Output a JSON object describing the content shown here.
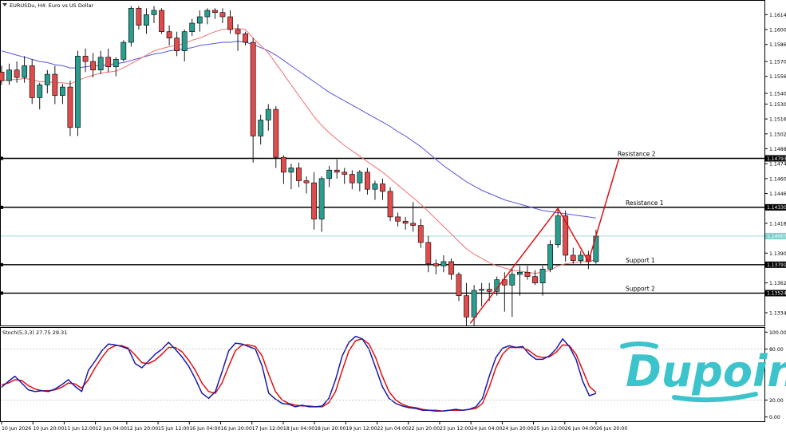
{
  "header": {
    "symbol_title": "EURUSDu, H4:  Euro vs US Dollar",
    "stoch_label": "Stoch(5,3,3) 27.75 29.31"
  },
  "brand": {
    "logo_text": "Dupoin",
    "color": "#3cc3cc"
  },
  "colors": {
    "bull": "#2a9d8f",
    "bear": "#e04b4b",
    "ma_fast": "#f07070",
    "ma_slow": "#5555dd",
    "stoch_main": "#1a1aa8",
    "stoch_signal": "#e01010",
    "current_price_line": "#7fcfcf",
    "level_line": "#000000",
    "projection": "#e01010"
  },
  "levels": [
    {
      "name": "Resistance 2",
      "price": 1.1479,
      "tag": "1.14793"
    },
    {
      "name": "Resistance 1",
      "price": 1.1433,
      "tag": "1.14330"
    },
    {
      "name": "Support 1",
      "price": 1.13791,
      "tag": "1.13791"
    },
    {
      "name": "Support 2",
      "price": 1.13524,
      "tag": "1.13524"
    }
  ],
  "current_price": {
    "price": 1.1406,
    "tag": "1.14067"
  },
  "chart_data": [
    {
      "type": "candlestick",
      "title": "EURUSDu, H4:  Euro vs US Dollar",
      "y_axis_ticks": [
        1.1614,
        1.16,
        1.1586,
        1.157,
        1.1556,
        1.154,
        1.153,
        1.1516,
        1.1502,
        1.1488,
        1.1474,
        1.146,
        1.1446,
        1.1418,
        1.139,
        1.1362,
        1.1334
      ],
      "y_axis_tick_labels": [
        "1.16140",
        "1.16000",
        "1.15860",
        "1.15700",
        "1.15560",
        "1.15400",
        "1.15300",
        "1.15160",
        "1.15020",
        "1.14880",
        "1.14740",
        "1.14600",
        "1.14460",
        "1.14180",
        "1.13900",
        "1.13620",
        "1.13340"
      ],
      "ylim": [
        1.1322,
        1.1627
      ],
      "x_tick_labels": [
        "10 Jun 2026",
        "10 Jun 20:00",
        "11 Jun 12:00",
        "12 Jun 04:00",
        "12 Jun 20:00",
        "15 Jun 12:00",
        "16 Jun 04:00",
        "16 Jun 20:00",
        "17 Jun 12:00",
        "18 Jun 04:00",
        "18 Jun 20:00",
        "19 Jun 12:00",
        "22 Jun 04:00",
        "22 Jun 20:00",
        "23 Jun 12:00",
        "24 Jun 04:00",
        "24 Jun 20:00",
        "25 Jun 12:00",
        "26 Jun 04:00",
        "26 Jun 20:00"
      ],
      "candles": [
        [
          1.156,
          1.1566,
          1.1548,
          1.1552
        ],
        [
          1.1552,
          1.1568,
          1.1548,
          1.1562
        ],
        [
          1.1562,
          1.157,
          1.155,
          1.1555
        ],
        [
          1.1555,
          1.1575,
          1.155,
          1.1566
        ],
        [
          1.1566,
          1.1572,
          1.153,
          1.1536
        ],
        [
          1.1536,
          1.155,
          1.1525,
          1.1548
        ],
        [
          1.1548,
          1.1562,
          1.154,
          1.1558
        ],
        [
          1.1558,
          1.1566,
          1.153,
          1.1538
        ],
        [
          1.1538,
          1.1549,
          1.153,
          1.1546
        ],
        [
          1.1546,
          1.1552,
          1.15,
          1.1508
        ],
        [
          1.1508,
          1.158,
          1.15,
          1.1575
        ],
        [
          1.1575,
          1.1582,
          1.156,
          1.157
        ],
        [
          1.157,
          1.1578,
          1.1555,
          1.1562
        ],
        [
          1.1562,
          1.158,
          1.1558,
          1.1574
        ],
        [
          1.1574,
          1.1582,
          1.156,
          1.1565
        ],
        [
          1.1565,
          1.1574,
          1.1556,
          1.1572
        ],
        [
          1.1572,
          1.159,
          1.157,
          1.1588
        ],
        [
          1.1588,
          1.1622,
          1.1584,
          1.162
        ],
        [
          1.162,
          1.1622,
          1.16,
          1.1604
        ],
        [
          1.1604,
          1.162,
          1.1596,
          1.1614
        ],
        [
          1.1614,
          1.1622,
          1.1606,
          1.1618
        ],
        [
          1.1618,
          1.162,
          1.1596,
          1.1598
        ],
        [
          1.1598,
          1.1604,
          1.1585,
          1.1592
        ],
        [
          1.1592,
          1.1598,
          1.1575,
          1.158
        ],
        [
          1.158,
          1.16,
          1.157,
          1.1598
        ],
        [
          1.1598,
          1.161,
          1.1594,
          1.1606
        ],
        [
          1.1606,
          1.1618,
          1.1598,
          1.1612
        ],
        [
          1.1612,
          1.162,
          1.1605,
          1.1618
        ],
        [
          1.1618,
          1.162,
          1.161,
          1.1616
        ],
        [
          1.1616,
          1.162,
          1.1606,
          1.1612
        ],
        [
          1.1612,
          1.1618,
          1.1596,
          1.16
        ],
        [
          1.16,
          1.1605,
          1.158,
          1.1596
        ],
        [
          1.1596,
          1.1598,
          1.1585,
          1.1588
        ],
        [
          1.1588,
          1.1592,
          1.1475,
          1.15
        ],
        [
          1.15,
          1.152,
          1.1492,
          1.1515
        ],
        [
          1.1515,
          1.153,
          1.1505,
          1.1525
        ],
        [
          1.1525,
          1.1528,
          1.147,
          1.148
        ],
        [
          1.148,
          1.1482,
          1.1455,
          1.1466
        ],
        [
          1.1466,
          1.1474,
          1.145,
          1.147
        ],
        [
          1.147,
          1.1475,
          1.1452,
          1.1458
        ],
        [
          1.1458,
          1.1462,
          1.1446,
          1.1456
        ],
        [
          1.1456,
          1.1466,
          1.1412,
          1.1422
        ],
        [
          1.1422,
          1.1462,
          1.141,
          1.146
        ],
        [
          1.146,
          1.1472,
          1.1452,
          1.1468
        ],
        [
          1.1468,
          1.1478,
          1.146,
          1.1466
        ],
        [
          1.1466,
          1.147,
          1.1455,
          1.1464
        ],
        [
          1.1464,
          1.1468,
          1.145,
          1.1456
        ],
        [
          1.1456,
          1.1468,
          1.1448,
          1.1466
        ],
        [
          1.1466,
          1.147,
          1.1445,
          1.145
        ],
        [
          1.145,
          1.1458,
          1.144,
          1.1455
        ],
        [
          1.1455,
          1.146,
          1.144,
          1.1448
        ],
        [
          1.1448,
          1.1452,
          1.142,
          1.1424
        ],
        [
          1.1424,
          1.1428,
          1.1415,
          1.142
        ],
        [
          1.142,
          1.1424,
          1.1412,
          1.1418
        ],
        [
          1.1418,
          1.1438,
          1.141,
          1.1416
        ],
        [
          1.1416,
          1.1422,
          1.1395,
          1.14
        ],
        [
          1.14,
          1.1406,
          1.1372,
          1.138
        ],
        [
          1.138,
          1.1384,
          1.137,
          1.1378
        ],
        [
          1.1378,
          1.1388,
          1.1372,
          1.1382
        ],
        [
          1.1382,
          1.1385,
          1.1365,
          1.137
        ],
        [
          1.137,
          1.1372,
          1.1345,
          1.135
        ],
        [
          1.135,
          1.1362,
          1.1322,
          1.133
        ],
        [
          1.133,
          1.136,
          1.1322,
          1.1355
        ],
        [
          1.1355,
          1.1362,
          1.134,
          1.1356
        ],
        [
          1.1356,
          1.1362,
          1.1345,
          1.1354
        ],
        [
          1.1354,
          1.1368,
          1.135,
          1.1365
        ],
        [
          1.1365,
          1.1372,
          1.1335,
          1.136
        ],
        [
          1.136,
          1.1375,
          1.133,
          1.137
        ],
        [
          1.137,
          1.1378,
          1.135,
          1.1372
        ],
        [
          1.1372,
          1.1378,
          1.1365,
          1.1368
        ],
        [
          1.1368,
          1.1374,
          1.136,
          1.1362
        ],
        [
          1.1362,
          1.1378,
          1.135,
          1.1375
        ],
        [
          1.1375,
          1.1402,
          1.1372,
          1.1398
        ],
        [
          1.1398,
          1.1432,
          1.1395,
          1.1425
        ],
        [
          1.1425,
          1.143,
          1.1382,
          1.1388
        ],
        [
          1.1388,
          1.1395,
          1.138,
          1.1383
        ],
        [
          1.1383,
          1.1392,
          1.138,
          1.1388
        ],
        [
          1.1388,
          1.1392,
          1.1375,
          1.1382
        ],
        [
          1.1382,
          1.1412,
          1.138,
          1.1406
        ]
      ],
      "ma_fast": [
        1.1552,
        1.1553,
        1.1553,
        1.1554,
        1.1553,
        1.1551,
        1.1551,
        1.155,
        1.155,
        1.1549,
        1.1552,
        1.1555,
        1.1557,
        1.1559,
        1.156,
        1.1561,
        1.1564,
        1.1568,
        1.1572,
        1.1576,
        1.158,
        1.1582,
        1.1584,
        1.1585,
        1.1587,
        1.159,
        1.1592,
        1.1595,
        1.1598,
        1.16,
        1.1601,
        1.1601,
        1.16,
        1.1592,
        1.1585,
        1.1578,
        1.1568,
        1.1558,
        1.1548,
        1.1538,
        1.1528,
        1.1518,
        1.151,
        1.1503,
        1.1497,
        1.1491,
        1.1486,
        1.1481,
        1.1476,
        1.1471,
        1.1466,
        1.146,
        1.1454,
        1.1448,
        1.1442,
        1.1436,
        1.1429,
        1.1422,
        1.1415,
        1.1408,
        1.1401,
        1.1394,
        1.1389,
        1.1385,
        1.1381,
        1.1378,
        1.1376,
        1.1374,
        1.1373,
        1.1372,
        1.1371,
        1.1372,
        1.1374,
        1.1378,
        1.138,
        1.1381,
        1.1382,
        1.1382,
        1.1384
      ],
      "ma_slow": [
        1.158,
        1.1578,
        1.1576,
        1.1574,
        1.1572,
        1.157,
        1.1569,
        1.1567,
        1.1566,
        1.1564,
        1.1564,
        1.1565,
        1.1566,
        1.1566,
        1.1567,
        1.1568,
        1.1569,
        1.1571,
        1.1573,
        1.1575,
        1.1577,
        1.1578,
        1.158,
        1.1581,
        1.1582,
        1.1583,
        1.1585,
        1.1586,
        1.1587,
        1.1588,
        1.1588,
        1.1589,
        1.1588,
        1.1586,
        1.1583,
        1.158,
        1.1576,
        1.1571,
        1.1566,
        1.1561,
        1.1556,
        1.1551,
        1.1546,
        1.1541,
        1.1537,
        1.1533,
        1.1529,
        1.1525,
        1.1521,
        1.1517,
        1.1513,
        1.1509,
        1.1504,
        1.15,
        1.1495,
        1.149,
        1.1484,
        1.1478,
        1.1472,
        1.1467,
        1.1462,
        1.1457,
        1.1453,
        1.1449,
        1.1446,
        1.1443,
        1.144,
        1.1438,
        1.1436,
        1.1434,
        1.1432,
        1.143,
        1.1429,
        1.1428,
        1.1427,
        1.1426,
        1.1425,
        1.1424,
        1.1423
      ],
      "zigzag": [
        [
          61.5,
          1.1324
        ],
        [
          73,
          1.1432
        ],
        [
          77,
          1.1382
        ],
        [
          81,
          1.1479
        ]
      ]
    },
    {
      "type": "line",
      "title": "Stoch(5,3,3) 27.75 29.31",
      "y_axis_ticks": [
        100,
        80,
        20,
        0
      ],
      "y_axis_tick_labels": [
        "100.00",
        "80.00",
        "20.00",
        "0.00"
      ],
      "ylim": [
        -5,
        105
      ],
      "series": [
        {
          "values": [
            35,
            42,
            48,
            40,
            32,
            30,
            31,
            30,
            33,
            38,
            44,
            36,
            30,
            55,
            66,
            78,
            86,
            85,
            83,
            80,
            63,
            58,
            66,
            74,
            80,
            88,
            80,
            71,
            60,
            45,
            28,
            22,
            30,
            53,
            78,
            87,
            86,
            83,
            80,
            60,
            28,
            21,
            16,
            15,
            12,
            14,
            12,
            12,
            13,
            22,
            44,
            72,
            88,
            95,
            92,
            80,
            58,
            36,
            22,
            16,
            13,
            11,
            10,
            8,
            8,
            7,
            7,
            8,
            9,
            8,
            9,
            12,
            22,
            48,
            70,
            81,
            84,
            82,
            83,
            74,
            68,
            68,
            72,
            80,
            92,
            83,
            68,
            42,
            25,
            28
          ]
        },
        {
          "values": [
            38,
            40,
            44,
            43,
            37,
            33,
            31,
            31,
            32,
            35,
            40,
            39,
            34,
            44,
            58,
            70,
            80,
            84,
            84,
            81,
            73,
            64,
            63,
            67,
            74,
            82,
            82,
            77,
            67,
            55,
            40,
            30,
            28,
            40,
            60,
            78,
            85,
            85,
            83,
            72,
            50,
            30,
            20,
            16,
            14,
            13,
            13,
            12,
            12,
            17,
            30,
            55,
            78,
            90,
            92,
            86,
            70,
            48,
            30,
            20,
            15,
            12,
            11,
            9,
            8,
            8,
            7,
            8,
            8,
            8,
            9,
            10,
            16,
            35,
            58,
            74,
            82,
            82,
            82,
            78,
            72,
            70,
            71,
            76,
            85,
            84,
            74,
            55,
            36,
            29
          ]
        }
      ]
    }
  ]
}
